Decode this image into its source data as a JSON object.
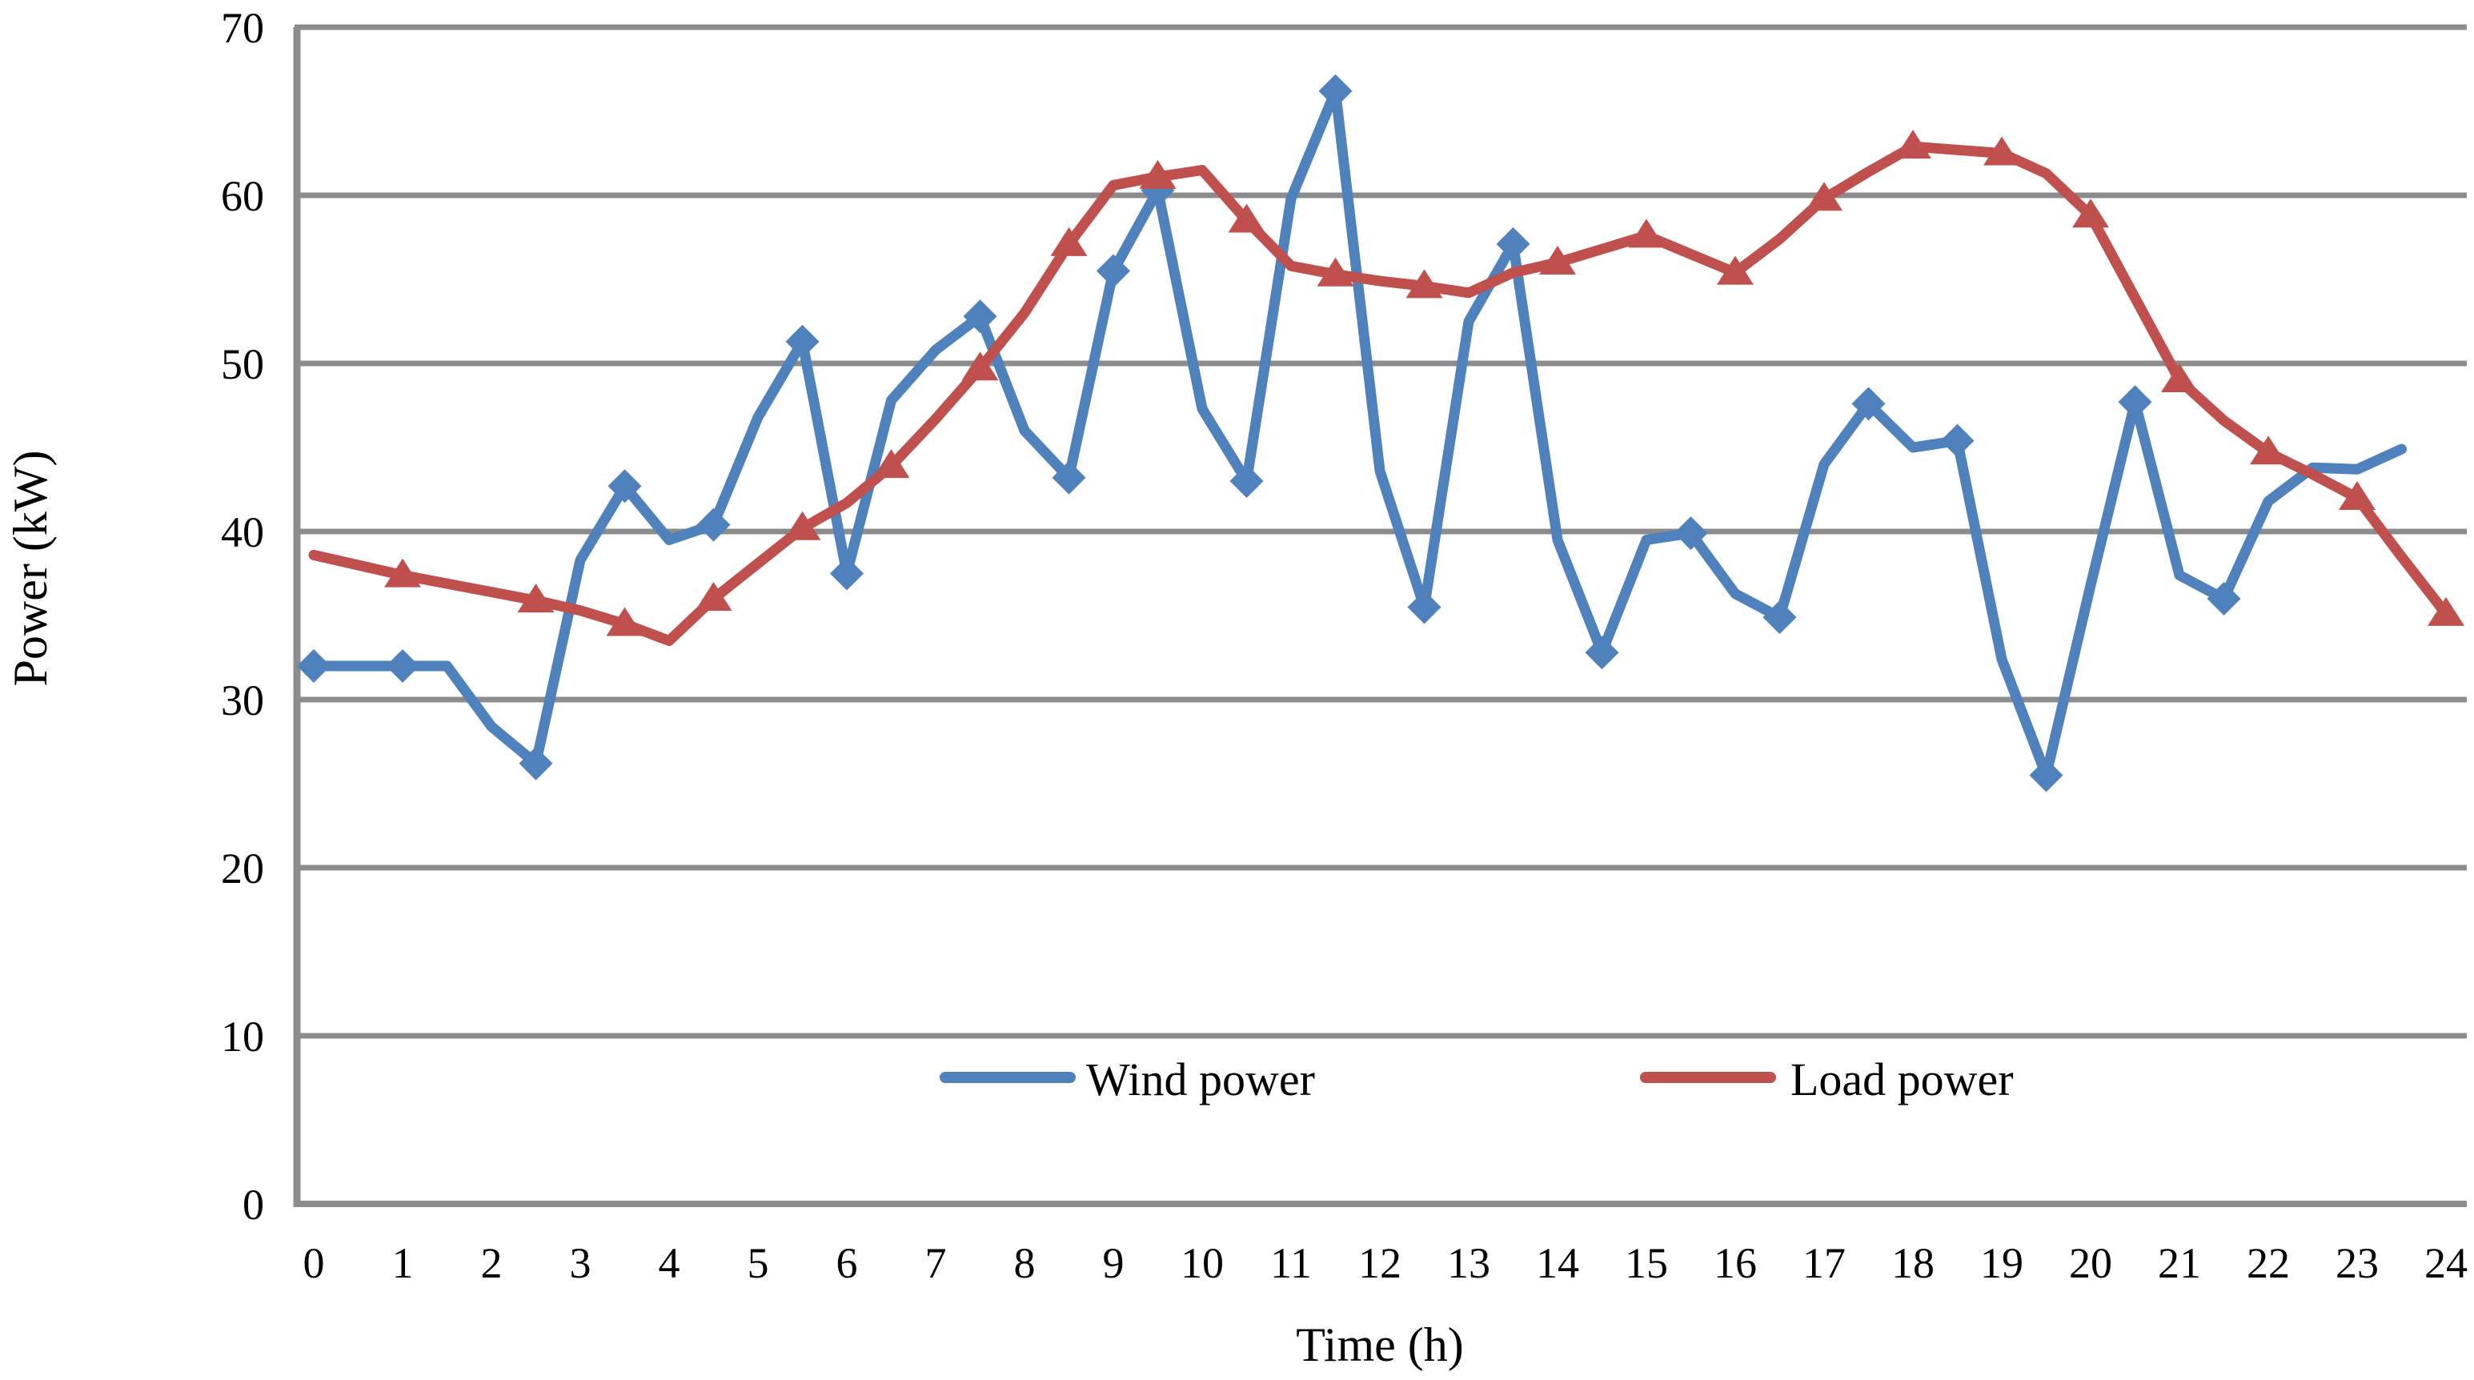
{
  "chart_data": {
    "type": "line",
    "title": "",
    "xlabel": "Time (h)",
    "ylabel": "Power (kW)",
    "xlim": [
      0,
      24
    ],
    "ylim": [
      0,
      70
    ],
    "x_ticks": [
      0,
      1,
      2,
      3,
      4,
      5,
      6,
      7,
      8,
      9,
      10,
      11,
      12,
      13,
      14,
      15,
      16,
      17,
      18,
      19,
      20,
      21,
      22,
      23,
      24
    ],
    "y_ticks": [
      0,
      10,
      20,
      30,
      40,
      50,
      60,
      70
    ],
    "grid": "horizontal-only",
    "legend_position": "inside-bottom",
    "colors": {
      "grid": "#8c8c8c",
      "axis": "#8c8c8c",
      "background": "#ffffff",
      "text": "#000000"
    },
    "series": [
      {
        "name": "Wind power",
        "color": "#4f81bd",
        "marker": "diamond",
        "x": [
          0,
          0.5,
          1,
          1.5,
          2,
          2.5,
          3,
          3.5,
          4,
          4.5,
          5,
          5.5,
          6,
          6.5,
          7,
          7.5,
          8,
          8.5,
          9,
          9.5,
          10,
          10.5,
          11,
          11.5,
          12,
          12.5,
          13,
          13.5,
          14,
          14.5,
          15,
          15.5,
          16,
          16.5,
          17,
          17.5,
          18,
          18.5,
          19,
          19.5,
          20,
          20.5,
          21,
          21.5,
          22,
          22.5,
          23,
          23.5
        ],
        "y": [
          32,
          32,
          32,
          32,
          28.4,
          26.2,
          38.3,
          42.7,
          39.5,
          40.4,
          46.8,
          51.3,
          37.5,
          47.8,
          50.8,
          52.8,
          46,
          43.2,
          55.5,
          60.3,
          47.3,
          43,
          59.8,
          66.2,
          43.6,
          35.5,
          52.5,
          57.1,
          39.5,
          32.8,
          39.5,
          39.9,
          36.3,
          34.9,
          44,
          47.6,
          45,
          45.4,
          32.4,
          25.5,
          36.8,
          47.7,
          37.4,
          36,
          41.8,
          43.8,
          43.7,
          44.9
        ],
        "marker_x": [
          0,
          1,
          2.5,
          3.5,
          4.5,
          5.5,
          6,
          7.5,
          8.5,
          9,
          9.5,
          10.5,
          11.5,
          12.5,
          13.5,
          14.5,
          15.5,
          16.5,
          17.5,
          18.5,
          19.5,
          20.5,
          21.5
        ]
      },
      {
        "name": "Load power",
        "color": "#c0504d",
        "marker": "triangle",
        "x": [
          0,
          0.5,
          1,
          1.5,
          2,
          2.5,
          3,
          3.5,
          4,
          4.5,
          5,
          5.5,
          6,
          6.5,
          7,
          7.5,
          8,
          8.5,
          9,
          9.5,
          10,
          10.5,
          11,
          11.5,
          12,
          12.5,
          13,
          13.5,
          14,
          14.5,
          15,
          15.5,
          16,
          16.5,
          17,
          17.5,
          18,
          18.5,
          19,
          19.5,
          20,
          20.5,
          21,
          21.5,
          22,
          22.5,
          23,
          23.5,
          24
        ],
        "y": [
          38.6,
          38,
          37.4,
          36.9,
          36.4,
          35.9,
          35.3,
          34.5,
          33.5,
          36,
          38.1,
          40.2,
          41.7,
          43.9,
          46.7,
          49.7,
          53,
          57.1,
          60.6,
          61.1,
          61.5,
          58.5,
          55.8,
          55.3,
          54.9,
          54.6,
          54.2,
          55.4,
          56,
          56.8,
          57.6,
          56.5,
          55.4,
          57.4,
          59.8,
          61.4,
          62.9,
          62.7,
          62.5,
          61.3,
          58.8,
          53.9,
          49,
          46.6,
          44.7,
          43.4,
          42,
          38.5,
          35.1
        ],
        "marker_x": [
          1,
          2.5,
          3.5,
          4.5,
          5.5,
          6.5,
          7.5,
          8.5,
          9.5,
          10.5,
          11.5,
          12.5,
          14,
          15,
          16,
          17,
          18,
          19,
          20,
          21,
          22,
          23,
          24
        ]
      }
    ],
    "legend": [
      {
        "label": "Wind power",
        "color": "#4f81bd"
      },
      {
        "label": "Load power",
        "color": "#c0504d"
      }
    ]
  }
}
